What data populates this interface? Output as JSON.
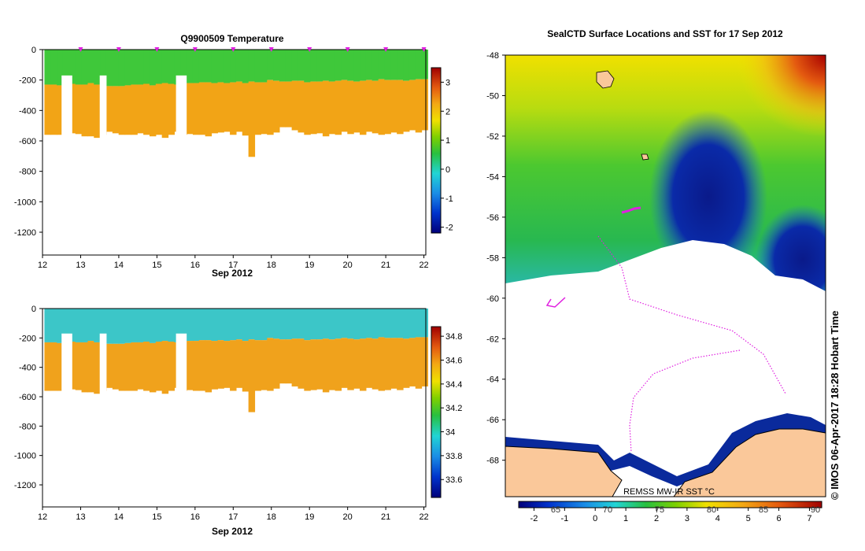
{
  "chart_data": [
    {
      "type": "heatmap",
      "title": "Q9900509  Temperature",
      "xlabel": "Sep 2012",
      "x_ticks": [
        "12",
        "13",
        "14",
        "15",
        "16",
        "17",
        "18",
        "19",
        "20",
        "21",
        "22"
      ],
      "xlim": [
        12,
        22.05
      ],
      "y_ticks": [
        "0",
        "-200",
        "-400",
        "-600",
        "-800",
        "-1000",
        "-1200"
      ],
      "ylim": [
        -1350,
        0
      ],
      "colorbar_ticks": [
        "3",
        "2",
        "1",
        "0",
        "-1",
        "-2"
      ],
      "colorbar_range": [
        -2.2,
        3.5
      ],
      "surface_markers_x": [
        13,
        14,
        15,
        16,
        17,
        18,
        19,
        20,
        21,
        22
      ],
      "profiles": {
        "bottom_depth": [
          -560,
          -560,
          -560,
          -550,
          -550,
          -555,
          -570,
          -570,
          -580,
          -560,
          -540,
          -550,
          -560,
          -560,
          -560,
          -550,
          -560,
          -570,
          -560,
          -580,
          -560,
          -540,
          -560,
          -555,
          -560,
          -560,
          -570,
          -550,
          -545,
          -540,
          -560,
          -540,
          -565,
          -705,
          -560,
          -555,
          -560,
          -545,
          -510,
          -510,
          -530,
          -545,
          -560,
          -555,
          -550,
          -570,
          -555,
          -560,
          -540,
          -555,
          -545,
          -560,
          -540,
          -550,
          -560,
          -555,
          -545,
          -555,
          -540,
          -530,
          -545,
          -530
        ],
        "mixed_layer_depth": [
          -230,
          -230,
          -235,
          -225,
          -225,
          -230,
          -230,
          -220,
          -230,
          -230,
          -240,
          -240,
          -240,
          -235,
          -230,
          -230,
          -225,
          -235,
          -225,
          -220,
          -225,
          -230,
          -225,
          -220,
          -220,
          -215,
          -215,
          -220,
          -215,
          -220,
          -215,
          -210,
          -220,
          -210,
          -215,
          -215,
          -200,
          -205,
          -210,
          -210,
          -205,
          -205,
          -215,
          -210,
          -210,
          -205,
          -210,
          -205,
          -200,
          -205,
          -210,
          -205,
          -200,
          -205,
          -195,
          -200,
          -200,
          -200,
          -205,
          -200,
          -195,
          -195
        ]
      },
      "data_gaps_x": [
        [
          12.5,
          12.78
        ],
        [
          13.5,
          13.68
        ],
        [
          15.5,
          15.78
        ]
      ],
      "layers": [
        {
          "name": "upper",
          "value": 0.5
        },
        {
          "name": "lower",
          "value": 2.3
        }
      ]
    },
    {
      "type": "heatmap",
      "title": "",
      "xlabel": "Sep 2012",
      "x_ticks": [
        "12",
        "13",
        "14",
        "15",
        "16",
        "17",
        "18",
        "19",
        "20",
        "21",
        "22"
      ],
      "xlim": [
        12,
        22.05
      ],
      "y_ticks": [
        "0",
        "-200",
        "-400",
        "-600",
        "-800",
        "-1000",
        "-1200"
      ],
      "ylim": [
        -1350,
        0
      ],
      "colorbar_ticks": [
        "34.8",
        "34.6",
        "34.4",
        "34.2",
        "34",
        "33.8",
        "33.6"
      ],
      "colorbar_range": [
        33.45,
        34.88
      ],
      "profiles": {
        "bottom_depth": [
          -560,
          -560,
          -560,
          -550,
          -550,
          -555,
          -570,
          -570,
          -580,
          -560,
          -540,
          -550,
          -560,
          -560,
          -560,
          -550,
          -560,
          -570,
          -560,
          -580,
          -560,
          -540,
          -560,
          -555,
          -560,
          -560,
          -570,
          -550,
          -545,
          -540,
          -560,
          -540,
          -565,
          -705,
          -560,
          -555,
          -560,
          -545,
          -510,
          -510,
          -530,
          -545,
          -560,
          -555,
          -550,
          -570,
          -555,
          -560,
          -540,
          -555,
          -545,
          -560,
          -540,
          -550,
          -560,
          -555,
          -545,
          -555,
          -540,
          -530,
          -545,
          -530
        ],
        "halocline_depth": [
          -230,
          -230,
          -235,
          -225,
          -225,
          -230,
          -230,
          -220,
          -230,
          -230,
          -240,
          -240,
          -240,
          -235,
          -230,
          -230,
          -225,
          -235,
          -225,
          -220,
          -225,
          -230,
          -225,
          -220,
          -220,
          -215,
          -215,
          -220,
          -215,
          -220,
          -215,
          -210,
          -220,
          -210,
          -215,
          -215,
          -200,
          -205,
          -210,
          -210,
          -205,
          -205,
          -215,
          -210,
          -210,
          -205,
          -210,
          -205,
          -200,
          -205,
          -210,
          -205,
          -200,
          -205,
          -195,
          -200,
          -200,
          -200,
          -205,
          -200,
          -195,
          -195
        ]
      },
      "data_gaps_x": [
        [
          12.5,
          12.78
        ],
        [
          13.5,
          13.68
        ],
        [
          15.5,
          15.78
        ]
      ],
      "layers": [
        {
          "name": "upper",
          "value": 33.85
        },
        {
          "name": "lower",
          "value": 34.5
        }
      ]
    },
    {
      "type": "heatmap",
      "title": "SealCTD Surface Locations and SST for 17 Sep 2012",
      "y_ticks": [
        "-48",
        "-50",
        "-52",
        "-54",
        "-56",
        "-58",
        "-60",
        "-62",
        "-64",
        "-66",
        "-68"
      ],
      "ylim": [
        -69.8,
        -48
      ],
      "inner_label": "REMSS MW-IR SST °C",
      "colorbar_ticks": [
        "-2",
        "-1",
        "0",
        "1",
        "2",
        "3",
        "4",
        "5",
        "6",
        "7"
      ],
      "colorbar_range": [
        -2.5,
        7.4
      ],
      "colorbar_overlay_ticks": [
        "65",
        "70",
        "75",
        "80",
        "85",
        "90"
      ],
      "credit": "© IMOS 06-Apr-2017 18:28 Hobart Time"
    }
  ],
  "colors": {
    "temp_upper": "#3fc83a",
    "temp_lower": "#f2a416",
    "sal_upper": "#3cc6c8",
    "sal_lower": "#f0a21c",
    "land": "#fac89a",
    "coast_ice": "#0a2a9c",
    "track": "#e020e0"
  }
}
